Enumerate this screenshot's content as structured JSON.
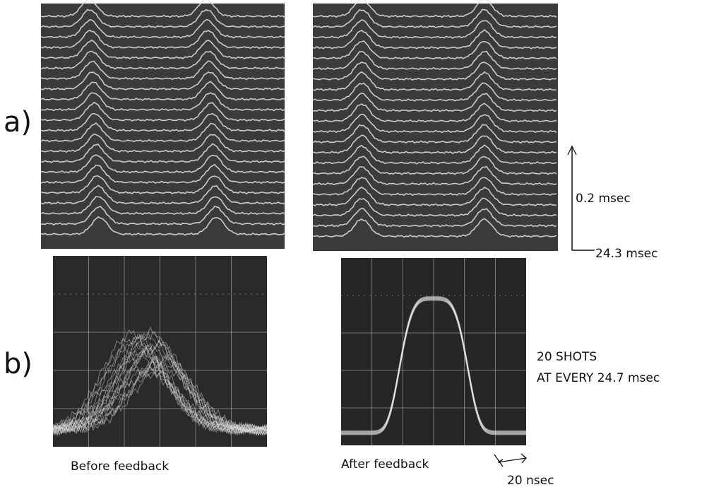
{
  "figure": {
    "row_labels": [
      "a)",
      "b)"
    ],
    "scale_period": "0.2 msec",
    "scale_time": "24.3 msec",
    "shots_line1": "20 SHOTS",
    "shots_line2": "AT EVERY 24.7 msec",
    "caption_before": "Before feedback",
    "caption_after": "After feedback",
    "time_scale": "20 nsec"
  }
}
